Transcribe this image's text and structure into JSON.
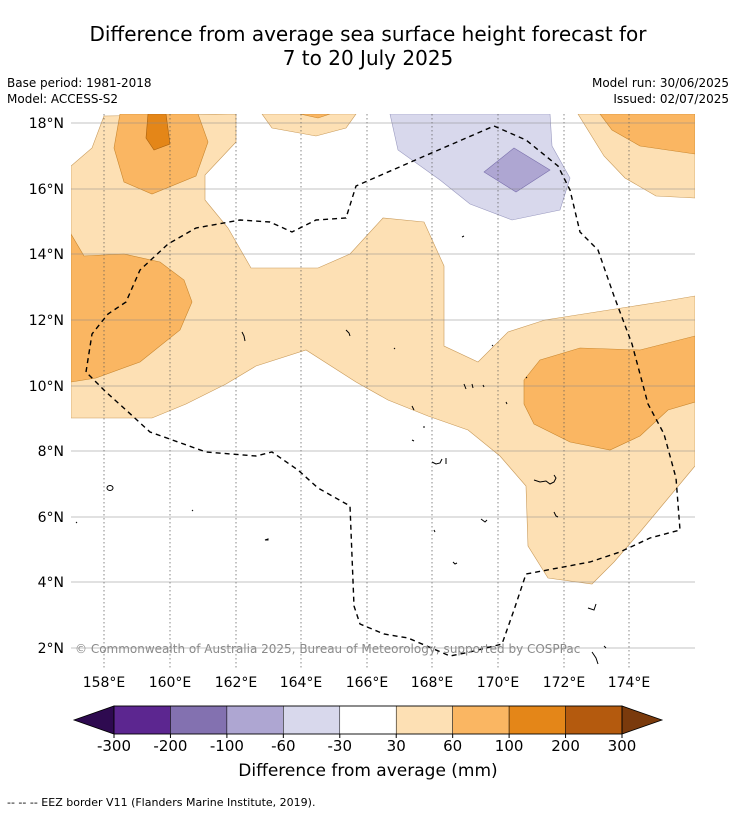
{
  "title_line1": "Difference from average sea surface height forecast for",
  "title_line2": "7 to 20 July 2025",
  "base_period": "Base period: 1981-2018",
  "model": "Model: ACCESS-S2",
  "model_run": "Model run: 30/06/2025",
  "issued": "Issued: 02/07/2025",
  "copyright": "© Commonwealth of Australia 2025, Bureau of Meteorology, supported by COSPPac",
  "lon_labels": [
    "158°E",
    "160°E",
    "162°E",
    "164°E",
    "166°E",
    "168°E",
    "170°E",
    "172°E",
    "174°E"
  ],
  "lat_labels": [
    "18°N",
    "16°N",
    "14°N",
    "12°N",
    "10°N",
    "8°N",
    "6°N",
    "4°N",
    "2°N"
  ],
  "colorbar": {
    "ticks": [
      "-300",
      "-200",
      "-100",
      "-60",
      "-30",
      "30",
      "60",
      "100",
      "200",
      "300"
    ],
    "colors": [
      "#5c2690",
      "#8371b0",
      "#aea6d2",
      "#d8d8ec",
      "#ffffff",
      "#fde0b4",
      "#fab662",
      "#e48618",
      "#b45a0e"
    ],
    "under_color": "#2e0a50",
    "over_color": "#7a3a0c",
    "label": "Difference from average (mm)"
  },
  "footer": "-- -- -- EEZ border V11 (Flanders Marine Institute, 2019)."
}
